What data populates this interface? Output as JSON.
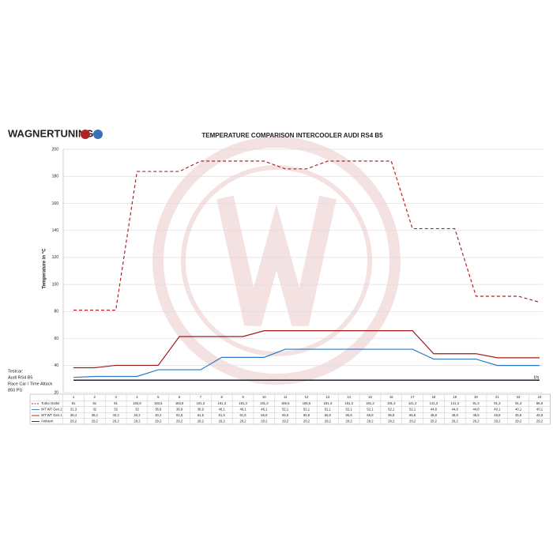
{
  "chart_data": {
    "type": "line",
    "brand": "WAGNERTUNING",
    "title": "TEMPERATURE COMPARISON INTERCOOLER AUDI RS4 B5",
    "y_label": "Temperature in °C",
    "x_label": "t/s",
    "notes": [
      "Testcar:",
      "Audi RS4 B5",
      "Race Car / Time Attack",
      "850 PS"
    ],
    "categories": [
      "1",
      "2",
      "3",
      "4",
      "5",
      "6",
      "7",
      "8",
      "9",
      "10",
      "11",
      "12",
      "13",
      "14",
      "15",
      "16",
      "17",
      "18",
      "19",
      "20",
      "21",
      "22",
      "23"
    ],
    "ylim": [
      20,
      200
    ],
    "yticks": [
      20,
      40,
      60,
      80,
      100,
      120,
      140,
      160,
      180,
      200
    ],
    "grid": true,
    "series": [
      {
        "name": "Turbo Outlet",
        "color": "#b22222",
        "dash": true,
        "values": [
          81,
          81,
          81,
          183.6,
          183.6,
          183.6,
          191.3,
          191.3,
          191.3,
          191.3,
          185.5,
          185.5,
          191.3,
          191.3,
          191.3,
          191.3,
          141.3,
          141.3,
          141.3,
          91.3,
          91.3,
          91.3,
          86.9
        ],
        "value_labels": [
          "81",
          "81",
          "81",
          "183,6",
          "183,6",
          "183,6",
          "191,3",
          "191,3",
          "191,3",
          "191,3",
          "185,5",
          "185,5",
          "191,3",
          "191,3",
          "191,3",
          "191,3",
          "141,3",
          "141,3",
          "141,3",
          "91,3",
          "91,3",
          "91,3",
          "86,9"
        ]
      },
      {
        "name": "WT WT Gen.2",
        "color": "#2e7bc4",
        "dash": false,
        "values": [
          31.3,
          32,
          32,
          32,
          36.9,
          36.9,
          36.9,
          46.1,
          46.1,
          46.1,
          52.1,
          52.1,
          52.1,
          52.1,
          52.1,
          52.1,
          52.1,
          44.8,
          44.8,
          44.8,
          40.1,
          40.1,
          40.1
        ],
        "value_labels": [
          "31,3",
          "32",
          "32",
          "32",
          "36,9",
          "36,9",
          "36,9",
          "46,1",
          "46,1",
          "46,1",
          "52,1",
          "52,1",
          "52,1",
          "52,1",
          "52,1",
          "52,1",
          "52,1",
          "44,8",
          "44,8",
          "44,8",
          "40,1",
          "40,1",
          "40,1"
        ]
      },
      {
        "name": "WT WT Gen.1",
        "color": "#a11a1a",
        "dash": false,
        "values": [
          38.4,
          38.4,
          40.2,
          40.2,
          40.2,
          61.5,
          61.5,
          61.5,
          61.5,
          65.8,
          65.8,
          65.8,
          65.8,
          65.8,
          65.8,
          65.8,
          65.8,
          48.8,
          48.8,
          48.8,
          45.8,
          45.8,
          45.8
        ],
        "value_labels": [
          "38,4",
          "38,4",
          "40,2",
          "40,2",
          "40,2",
          "61,5",
          "61,5",
          "61,5",
          "61,5",
          "65,8",
          "65,8",
          "65,8",
          "65,8",
          "65,8",
          "65,8",
          "65,8",
          "65,8",
          "48,8",
          "48,8",
          "48,8",
          "45,8",
          "45,8",
          "45,8"
        ]
      },
      {
        "name": "Ambient",
        "color": "#1c2340",
        "dash": false,
        "values": [
          29.2,
          29.2,
          29.2,
          29.2,
          29.2,
          29.2,
          29.2,
          29.2,
          29.2,
          29.2,
          29.2,
          29.2,
          29.2,
          29.2,
          29.2,
          29.2,
          29.2,
          29.2,
          29.2,
          29.2,
          29.2,
          29.2,
          29.2
        ],
        "value_labels": [
          "29,2",
          "29,2",
          "29,2",
          "29,2",
          "29,2",
          "29,2",
          "29,2",
          "29,2",
          "29,2",
          "29,2",
          "29,2",
          "29,2",
          "29,2",
          "29,2",
          "29,2",
          "29,2",
          "29,2",
          "29,2",
          "29,2",
          "29,2",
          "29,2",
          "29,2",
          "29,2"
        ]
      }
    ]
  }
}
